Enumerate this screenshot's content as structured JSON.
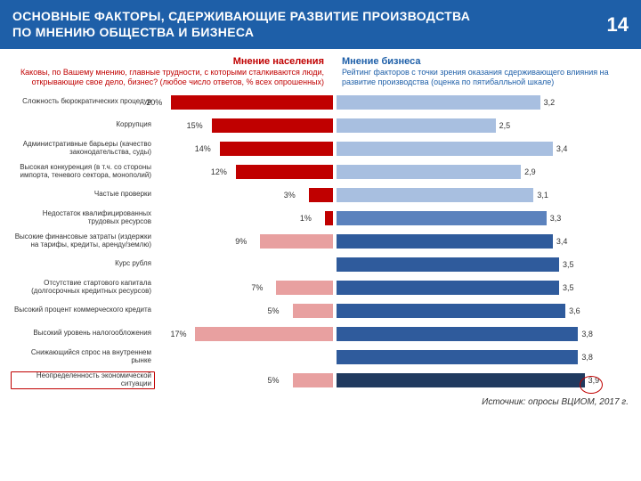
{
  "header": {
    "title_l1": "ОСНОВНЫЕ ФАКТОРЫ, СДЕРЖИВАЮЩИЕ РАЗВИТИЕ ПРОИЗВОДСТВА",
    "title_l2": "ПО МНЕНИЮ ОБЩЕСТВА И БИЗНЕСА",
    "page": "14",
    "bg": "#1e5fa8"
  },
  "subheads": {
    "left_title": "Мнение населения",
    "left_desc": "Каковы, по Вашему мнению, главные трудности, с которыми сталкиваются люди, открывающие свое дело, бизнес? (любое число ответов, % всех опрошенных)",
    "left_color": "#c00000",
    "right_title": "Мнение бизнеса",
    "right_desc": "Рейтинг факторов с точки зрения оказания сдерживающего влияния на развитие производства (оценка по пятибалльной шкале)",
    "right_color": "#1e5fa8"
  },
  "chart": {
    "left_max": 22,
    "right_max": 4.2,
    "colors": {
      "red_strong": "#c00000",
      "red_weak": "#e8a0a0",
      "blue_strong": "#2f5b9c",
      "blue_mid": "#5b82bd",
      "blue_weak": "#a8bfe0",
      "blue_dark": "#203a5f"
    },
    "rows": [
      {
        "label": "Сложность бюрократических процедур",
        "pct": "20%",
        "l_val": 20,
        "l_color": "red_strong",
        "r_val": 3.2,
        "r_color": "blue_weak",
        "r_label": "3,2"
      },
      {
        "label": "Коррупция",
        "pct": "15%",
        "l_val": 15,
        "l_color": "red_strong",
        "r_val": 2.5,
        "r_color": "blue_weak",
        "r_label": "2,5"
      },
      {
        "label": "Административные барьеры (качество законодательства, суды)",
        "pct": "14%",
        "l_val": 14,
        "l_color": "red_strong",
        "r_val": 3.4,
        "r_color": "blue_weak",
        "r_label": "3,4"
      },
      {
        "label": "Высокая конкуренция (в т.ч. со стороны импорта, теневого сектора, монополий)",
        "pct": "12%",
        "l_val": 12,
        "l_color": "red_strong",
        "r_val": 2.9,
        "r_color": "blue_weak",
        "r_label": "2,9"
      },
      {
        "label": "Частые проверки",
        "pct": "3%",
        "l_val": 3,
        "l_color": "red_strong",
        "r_val": 3.1,
        "r_color": "blue_weak",
        "r_label": "3,1"
      },
      {
        "label": "Недостаток квалифицированных трудовых ресурсов",
        "pct": "1%",
        "l_val": 1,
        "l_color": "red_strong",
        "r_val": 3.3,
        "r_color": "blue_mid",
        "r_label": "3,3"
      },
      {
        "label": "Высокие финансовые затраты (издержки на тарифы, кредиты, аренду/землю)",
        "pct": "9%",
        "l_val": 9,
        "l_color": "red_weak",
        "r_val": 3.4,
        "r_color": "blue_strong",
        "r_label": "3,4"
      },
      {
        "label": "Курс рубля",
        "pct": "",
        "l_val": 0,
        "l_color": "red_weak",
        "r_val": 3.5,
        "r_color": "blue_strong",
        "r_label": "3,5"
      },
      {
        "label": "Отсутствие стартового капитала (долгосрочных кредитных ресурсов)",
        "pct": "7%",
        "l_val": 7,
        "l_color": "red_weak",
        "r_val": 3.5,
        "r_color": "blue_strong",
        "r_label": "3,5"
      },
      {
        "label": "Высокий процент коммерческого кредита",
        "pct": "5%",
        "l_val": 5,
        "l_color": "red_weak",
        "r_val": 3.6,
        "r_color": "blue_strong",
        "r_label": "3,6"
      },
      {
        "label": "Высокий уровень налогообложения",
        "pct": "17%",
        "l_val": 17,
        "l_color": "red_weak",
        "r_val": 3.8,
        "r_color": "blue_strong",
        "r_label": "3,8"
      },
      {
        "label": "Снижающийся спрос на внутреннем рынке",
        "pct": "",
        "l_val": 0,
        "l_color": "red_weak",
        "r_val": 3.8,
        "r_color": "blue_strong",
        "r_label": "3,8"
      },
      {
        "label": "Неопределенность экономической ситуации",
        "pct": "5%",
        "l_val": 5,
        "l_color": "red_weak",
        "r_val": 3.9,
        "r_color": "blue_dark",
        "r_label": "3,9",
        "highlight_label": true,
        "highlight_circle": true
      }
    ]
  },
  "source": "Источник: опросы ВЦИОМ, 2017 г."
}
